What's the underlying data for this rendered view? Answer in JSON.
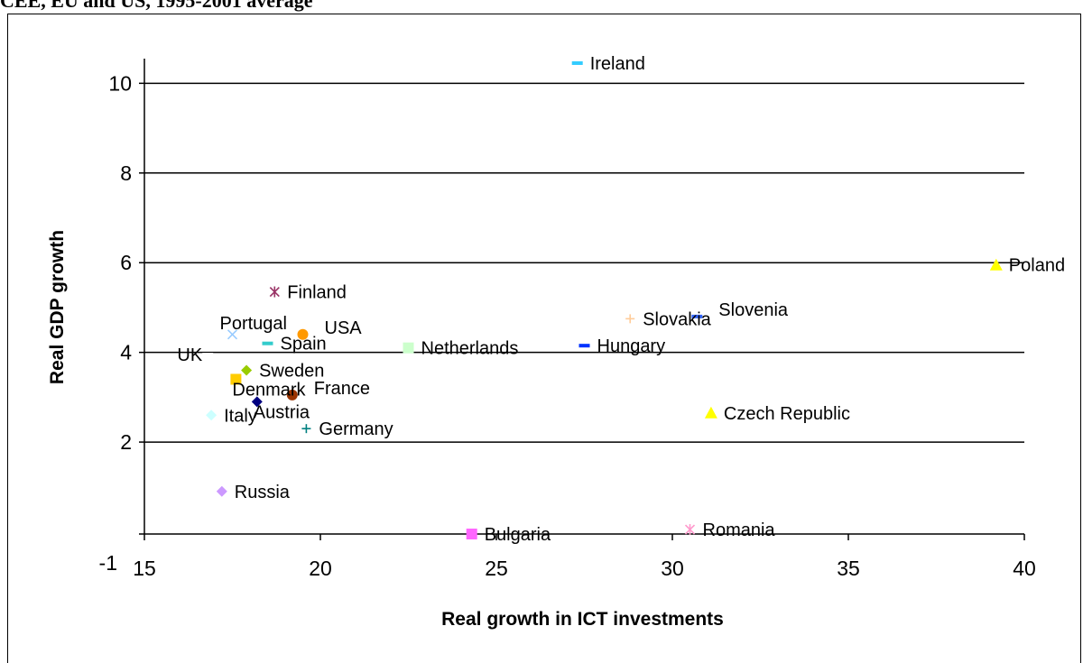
{
  "caption": "CEE, EU and US, 1995-2001 average",
  "chart_data": {
    "type": "scatter",
    "title": "",
    "xlabel": "Real growth in ICT investments",
    "ylabel": "Real GDP growth",
    "xlim": [
      15,
      40
    ],
    "ylim": [
      -1,
      11
    ],
    "xticks": [
      15,
      20,
      25,
      30,
      35,
      40
    ],
    "xtick_labels": [
      "15",
      "20",
      "25",
      "30",
      "35",
      "40"
    ],
    "yticks": [
      -1,
      2,
      4,
      6,
      8,
      10
    ],
    "ytick_labels": [
      "-1",
      "2",
      "4",
      "6",
      "8",
      "10"
    ],
    "grid": "horizontal",
    "points": [
      {
        "label": "Ireland",
        "x": 27.3,
        "y": 10.45,
        "marker": "dash",
        "color": "#33ccff",
        "label_pos": "right"
      },
      {
        "label": "Poland",
        "x": 39.2,
        "y": 5.95,
        "marker": "triangle",
        "color": "#ffff00",
        "label_pos": "right"
      },
      {
        "label": "Finland",
        "x": 18.7,
        "y": 5.35,
        "marker": "star",
        "color": "#993366",
        "label_pos": "right"
      },
      {
        "label": "Slovenia",
        "x": 30.7,
        "y": 4.8,
        "marker": "dash",
        "color": "#3366ff",
        "label_pos": "right-up"
      },
      {
        "label": "Slovakia",
        "x": 28.8,
        "y": 4.75,
        "marker": "plus",
        "color": "#ffcc99",
        "label_pos": "right"
      },
      {
        "label": "Portugal",
        "x": 17.5,
        "y": 4.4,
        "marker": "x",
        "color": "#99ccff",
        "label_pos": "top"
      },
      {
        "label": "USA",
        "x": 19.5,
        "y": 4.4,
        "marker": "circle",
        "color": "#ff9900",
        "label_pos": "right-up"
      },
      {
        "label": "Spain",
        "x": 18.5,
        "y": 4.2,
        "marker": "dash",
        "color": "#33cccc",
        "label_pos": "right"
      },
      {
        "label": "Netherlands",
        "x": 22.5,
        "y": 4.1,
        "marker": "square",
        "color": "#ccffcc",
        "label_pos": "right"
      },
      {
        "label": "Hungary",
        "x": 27.5,
        "y": 4.15,
        "marker": "dash",
        "color": "#0033ff",
        "label_pos": "right"
      },
      {
        "label": "UK",
        "x": 16.8,
        "y": 3.95,
        "marker": "dash",
        "color": "#ffffff",
        "label_pos": "left"
      },
      {
        "label": "Sweden",
        "x": 17.9,
        "y": 3.6,
        "marker": "diamond",
        "color": "#99cc00",
        "label_pos": "right"
      },
      {
        "label": "Denmark",
        "x": 17.6,
        "y": 3.4,
        "marker": "square",
        "color": "#ffcc00",
        "label_pos": "below-right"
      },
      {
        "label": "France",
        "x": 19.2,
        "y": 3.05,
        "marker": "circle",
        "color": "#993300",
        "label_pos": "right-up"
      },
      {
        "label": "Austria",
        "x": 18.2,
        "y": 2.9,
        "marker": "diamond",
        "color": "#000080",
        "label_pos": "below-right"
      },
      {
        "label": "Czech Republic",
        "x": 31.1,
        "y": 2.65,
        "marker": "triangle",
        "color": "#ffff00",
        "label_pos": "right"
      },
      {
        "label": "Italy",
        "x": 16.9,
        "y": 2.6,
        "marker": "diamond",
        "color": "#ccffff",
        "label_pos": "right"
      },
      {
        "label": "Germany",
        "x": 19.6,
        "y": 2.3,
        "marker": "plus",
        "color": "#008080",
        "label_pos": "right"
      },
      {
        "label": "Russia",
        "x": 17.2,
        "y": 0.9,
        "marker": "diamond",
        "color": "#cc99ff",
        "label_pos": "right"
      },
      {
        "label": "Romania",
        "x": 30.5,
        "y": 0.05,
        "marker": "star",
        "color": "#ff99cc",
        "label_pos": "right"
      },
      {
        "label": "Bulgaria",
        "x": 24.3,
        "y": -0.05,
        "marker": "square",
        "color": "#ff66ff",
        "label_pos": "right"
      }
    ]
  }
}
